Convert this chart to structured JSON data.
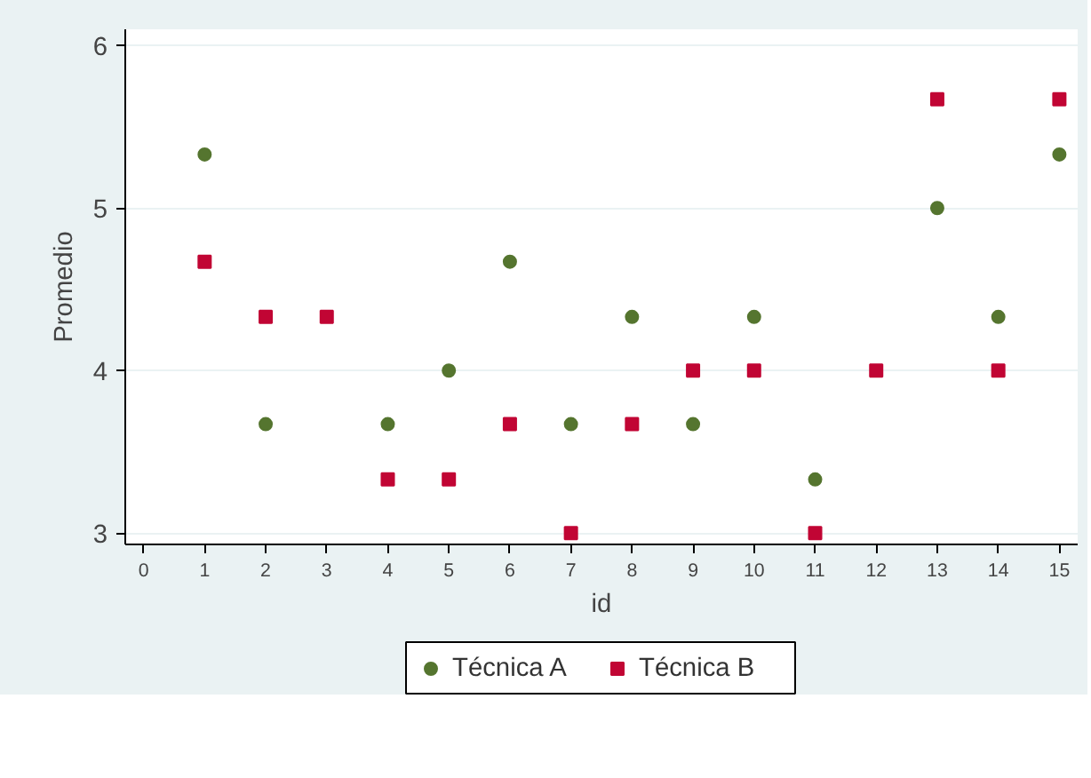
{
  "chart_data": {
    "type": "scatter",
    "xlabel": "id",
    "ylabel": "Promedio",
    "x": [
      1,
      2,
      3,
      4,
      5,
      6,
      7,
      8,
      9,
      10,
      11,
      12,
      13,
      14,
      15
    ],
    "series": [
      {
        "name": "Técnica A",
        "color": "#55752f",
        "marker": "circle",
        "values": [
          5.33,
          3.67,
          null,
          3.67,
          4.0,
          4.67,
          3.67,
          4.33,
          3.67,
          4.33,
          3.33,
          null,
          5.0,
          4.33,
          5.33
        ]
      },
      {
        "name": "Técnica B",
        "color": "#c10534",
        "marker": "square",
        "values": [
          4.67,
          4.33,
          4.33,
          3.33,
          3.33,
          3.67,
          3.0,
          3.67,
          4.0,
          4.0,
          3.0,
          4.0,
          5.67,
          4.0,
          5.67
        ]
      }
    ],
    "xlim": [
      -0.3,
      15.3
    ],
    "ylim": [
      2.93,
      6.1
    ],
    "xticks": [
      0,
      1,
      2,
      3,
      4,
      5,
      6,
      7,
      8,
      9,
      10,
      11,
      12,
      13,
      14,
      15
    ],
    "yticks": [
      3,
      4,
      5,
      6
    ],
    "grid": "y",
    "legend": "bottom"
  }
}
